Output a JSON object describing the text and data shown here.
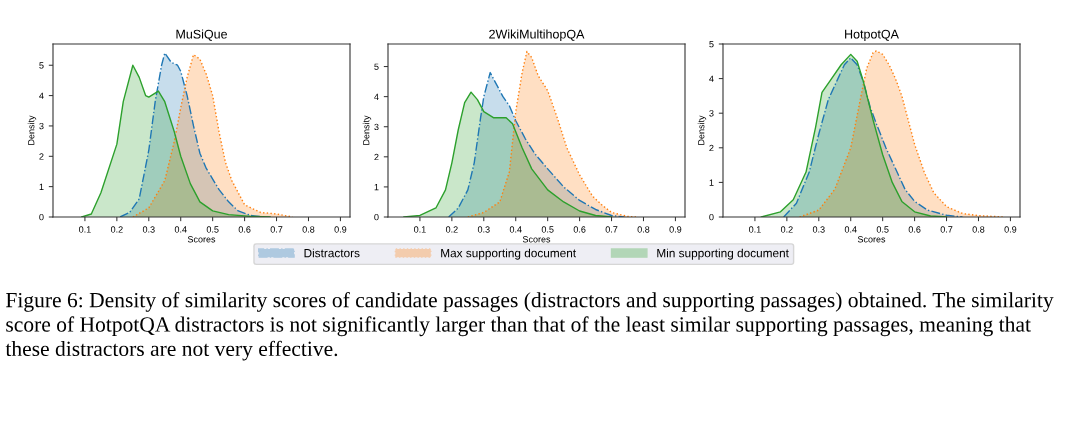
{
  "chart_data": [
    {
      "type": "area",
      "title": "MuSiQue",
      "xlabel": "Scores",
      "ylabel": "Density",
      "xlim": [
        0.0,
        0.93
      ],
      "ylim": [
        0,
        5.7
      ],
      "xticks": [
        0.1,
        0.2,
        0.3,
        0.4,
        0.5,
        0.6,
        0.7,
        0.8,
        0.9
      ],
      "yticks": [
        0,
        1,
        2,
        3,
        4,
        5
      ],
      "legend": "bottom",
      "series": [
        {
          "name": "Distractors",
          "color": "#1f77b4",
          "line_style": "dashed",
          "x": [
            0.21,
            0.24,
            0.27,
            0.3,
            0.32,
            0.34,
            0.35,
            0.37,
            0.39,
            0.4,
            0.42,
            0.44,
            0.46,
            0.48,
            0.5,
            0.52,
            0.55,
            0.58,
            0.62,
            0.66
          ],
          "values": [
            0,
            0.15,
            0.6,
            2.2,
            3.8,
            5.0,
            5.4,
            5.1,
            5.0,
            4.8,
            4.0,
            3.0,
            2.1,
            1.6,
            1.25,
            0.9,
            0.5,
            0.2,
            0.05,
            0
          ]
        },
        {
          "name": "Max supporting document",
          "color": "#ff7f0e",
          "line_style": "dotted",
          "x": [
            0.25,
            0.3,
            0.35,
            0.38,
            0.4,
            0.42,
            0.44,
            0.46,
            0.48,
            0.5,
            0.52,
            0.54,
            0.56,
            0.6,
            0.65,
            0.7,
            0.75
          ],
          "values": [
            0,
            0.3,
            1.2,
            2.5,
            3.6,
            4.6,
            5.35,
            5.2,
            4.7,
            4.0,
            2.8,
            1.8,
            1.2,
            0.4,
            0.15,
            0.1,
            0
          ]
        },
        {
          "name": "Min supporting document",
          "color": "#2ca02c",
          "line_style": "solid",
          "x": [
            0.09,
            0.12,
            0.15,
            0.2,
            0.22,
            0.25,
            0.27,
            0.29,
            0.3,
            0.33,
            0.35,
            0.38,
            0.4,
            0.43,
            0.46,
            0.5,
            0.55,
            0.62,
            0.68
          ],
          "values": [
            0,
            0.1,
            0.8,
            2.4,
            3.8,
            5.0,
            4.6,
            4.0,
            3.95,
            4.15,
            3.8,
            2.8,
            2.0,
            1.1,
            0.5,
            0.2,
            0.08,
            0.02,
            0
          ]
        }
      ],
      "annotations": [
        "Figure 6: Density of similarity scores of candidate passages (distractors and supporting passages) obtained. The similarity score of HotpotQA distractors is not significantly larger than that of the least similar supporting passages, meaning that these distractors are not very effective."
      ]
    },
    {
      "type": "area",
      "title": "2WikiMultihopQA",
      "xlabel": "Scores",
      "ylabel": "Density",
      "xlim": [
        0.0,
        0.93
      ],
      "ylim": [
        0,
        5.75
      ],
      "xticks": [
        0.1,
        0.2,
        0.3,
        0.4,
        0.5,
        0.6,
        0.7,
        0.8,
        0.9
      ],
      "yticks": [
        0,
        1,
        2,
        3,
        4,
        5
      ],
      "series": [
        {
          "color": "#1f77b4",
          "line_style": "dashed",
          "x": [
            0.19,
            0.22,
            0.25,
            0.27,
            0.29,
            0.3,
            0.32,
            0.34,
            0.36,
            0.38,
            0.4,
            0.43,
            0.46,
            0.5,
            0.55,
            0.6,
            0.65,
            0.7,
            0.74
          ],
          "values": [
            0,
            0.3,
            0.9,
            1.8,
            3.3,
            4.0,
            4.8,
            4.4,
            4.0,
            3.7,
            3.2,
            2.6,
            2.1,
            1.6,
            1.0,
            0.55,
            0.25,
            0.05,
            0
          ]
        },
        {
          "color": "#ff7f0e",
          "line_style": "dotted",
          "x": [
            0.25,
            0.3,
            0.35,
            0.38,
            0.4,
            0.42,
            0.435,
            0.45,
            0.47,
            0.5,
            0.53,
            0.56,
            0.6,
            0.64,
            0.67,
            0.7,
            0.75,
            0.78
          ],
          "values": [
            0,
            0.15,
            0.5,
            1.5,
            3.5,
            4.8,
            5.5,
            5.3,
            4.7,
            4.2,
            3.3,
            2.3,
            1.4,
            0.7,
            0.4,
            0.15,
            0.02,
            0
          ]
        },
        {
          "color": "#2ca02c",
          "line_style": "solid",
          "x": [
            0.05,
            0.1,
            0.15,
            0.18,
            0.2,
            0.22,
            0.24,
            0.26,
            0.28,
            0.3,
            0.33,
            0.37,
            0.39,
            0.42,
            0.45,
            0.5,
            0.55,
            0.6,
            0.65,
            0.7
          ],
          "values": [
            0,
            0.05,
            0.3,
            0.9,
            1.8,
            2.9,
            3.8,
            4.15,
            3.9,
            3.5,
            3.3,
            3.3,
            3.1,
            2.3,
            1.6,
            0.9,
            0.5,
            0.2,
            0.05,
            0
          ]
        }
      ]
    },
    {
      "type": "area",
      "title": "HotpotQA",
      "xlabel": "Scores",
      "ylabel": "Density",
      "xlim": [
        0.0,
        0.93
      ],
      "ylim": [
        0,
        5
      ],
      "xticks": [
        0.1,
        0.2,
        0.3,
        0.4,
        0.5,
        0.6,
        0.7,
        0.8,
        0.9
      ],
      "yticks": [
        0,
        1,
        2,
        3,
        4,
        5
      ],
      "series": [
        {
          "color": "#1f77b4",
          "line_style": "dashed",
          "x": [
            0.19,
            0.23,
            0.27,
            0.3,
            0.33,
            0.36,
            0.38,
            0.4,
            0.42,
            0.44,
            0.46,
            0.48,
            0.51,
            0.54,
            0.57,
            0.6,
            0.64,
            0.7,
            0.75
          ],
          "values": [
            0,
            0.4,
            1.3,
            2.4,
            3.4,
            4.0,
            4.4,
            4.6,
            4.4,
            3.9,
            3.2,
            2.7,
            2.0,
            1.4,
            0.8,
            0.45,
            0.2,
            0.05,
            0
          ]
        },
        {
          "color": "#ff7f0e",
          "line_style": "dotted",
          "x": [
            0.24,
            0.3,
            0.35,
            0.4,
            0.43,
            0.45,
            0.47,
            0.48,
            0.5,
            0.52,
            0.54,
            0.56,
            0.58,
            0.6,
            0.63,
            0.66,
            0.7,
            0.75,
            0.8,
            0.88
          ],
          "values": [
            0,
            0.2,
            0.8,
            2.0,
            3.4,
            4.3,
            4.75,
            4.8,
            4.7,
            4.4,
            4.0,
            3.5,
            2.8,
            2.1,
            1.3,
            0.7,
            0.3,
            0.1,
            0.04,
            0
          ]
        },
        {
          "color": "#2ca02c",
          "line_style": "solid",
          "x": [
            0.12,
            0.18,
            0.22,
            0.26,
            0.29,
            0.31,
            0.34,
            0.37,
            0.4,
            0.42,
            0.44,
            0.47,
            0.5,
            0.53,
            0.56,
            0.6,
            0.65,
            0.7
          ],
          "values": [
            0,
            0.15,
            0.5,
            1.3,
            2.6,
            3.6,
            4.0,
            4.4,
            4.7,
            4.5,
            3.9,
            2.8,
            1.8,
            1.0,
            0.45,
            0.15,
            0.03,
            0
          ]
        }
      ]
    }
  ]
}
